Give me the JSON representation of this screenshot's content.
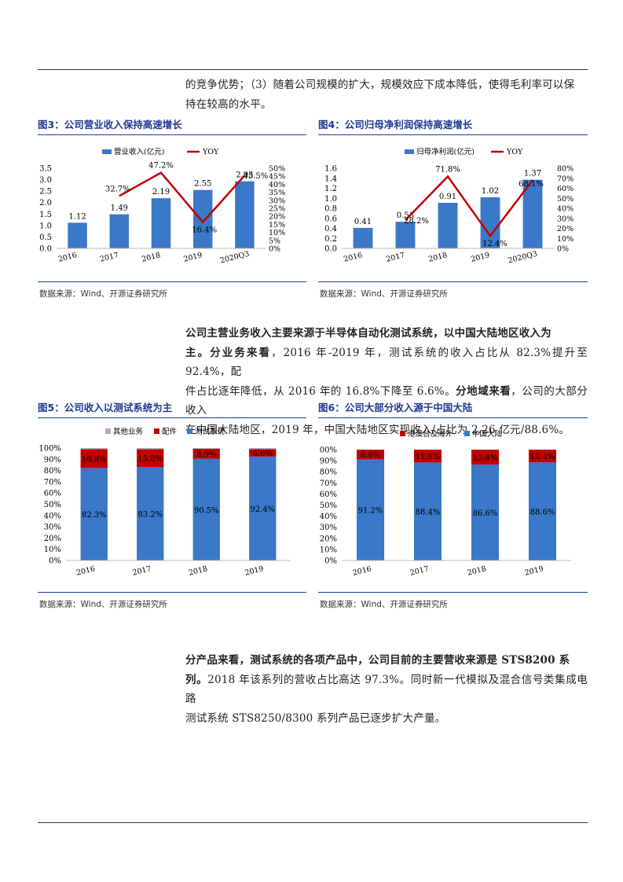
{
  "paragraphs": {
    "p1_line1": "的竞争优势；（3）随着公司规模的扩大，规模效应下成本降低，使得毛利率可以保",
    "p1_line2": "持在较高的水平。",
    "p2_bold1": "公司主营业务收入主要来源于半导体自动化测试系统，以中国大陆地区收入为",
    "p2_bold2": "主。分业务来看",
    "p2_rest2": "，2016 年-2019 年，测试系统的收入占比从 82.3%提升至 92.4%，配",
    "p2_line3": "件占比逐年降低，从 2016 年的 16.8%下降至 6.6%。",
    "p2_bold3": "分地域来看",
    "p2_rest3": "，公司的大部分收入",
    "p2_line4": "在中国大陆地区，2019 年，中国大陆地区实现收入/占比为 2.26 亿元/88.6%。",
    "p3_bold1": "分产品来看，测试系统的各项产品中，公司目前的主要营收来源是 STS8200 系",
    "p3_bold2": "列。",
    "p3_rest2": "2018 年该系列的营收占比高达 97.3%。同时新一代模拟及混合信号类集成电路",
    "p3_line3": "测试系统 STS8250/8300 系列产品已逐步扩大产量。"
  },
  "figures": {
    "fig3_title": "图3：公司营业收入保持高速增长",
    "fig4_title": "图4：公司归母净利润保持高速增长",
    "fig5_title": "图5：公司收入以测试系统为主",
    "fig6_title": "图6：公司大部分收入源于中国大陆",
    "source": "数据来源：Wind、开源证券研究所"
  },
  "colors": {
    "blue": "#3a78c9",
    "red": "#c00000",
    "gray": "#a6b0bd",
    "title_blue": "#1f3a93"
  },
  "chart_data": [
    {
      "type": "bar",
      "id": "fig3",
      "categories": [
        "2016",
        "2017",
        "2018",
        "2019",
        "2020Q3"
      ],
      "series": [
        {
          "name": "营业收入(亿元)",
          "type": "bar",
          "values": [
            1.12,
            1.49,
            2.19,
            2.55,
            2.93
          ],
          "labels": [
            "1.12",
            "1.49",
            "2.19",
            "2.55",
            "2.93"
          ]
        },
        {
          "name": "YOY",
          "type": "line",
          "axis": "right",
          "values": [
            null,
            32.7,
            47.2,
            16.4,
            45.5
          ],
          "labels": [
            "",
            "32.7%",
            "47.2%",
            "16.4%",
            "45.5%"
          ]
        }
      ],
      "ylim": [
        0,
        3.5
      ],
      "yticks": [
        "0.0",
        "0.5",
        "1.0",
        "1.5",
        "2.0",
        "2.5",
        "3.0",
        "3.5"
      ],
      "y2lim": [
        0,
        50
      ],
      "y2ticks": [
        "0%",
        "5%",
        "10%",
        "15%",
        "20%",
        "25%",
        "30%",
        "35%",
        "40%",
        "45%",
        "50%"
      ]
    },
    {
      "type": "bar",
      "id": "fig4",
      "categories": [
        "2016",
        "2017",
        "2018",
        "2019",
        "2020Q3"
      ],
      "series": [
        {
          "name": "归母净利润(亿元)",
          "type": "bar",
          "values": [
            0.41,
            0.53,
            0.91,
            1.02,
            1.37
          ],
          "labels": [
            "0.41",
            "0.53",
            "0.91",
            "1.02",
            "1.37"
          ]
        },
        {
          "name": "YOY",
          "type": "line",
          "axis": "right",
          "values": [
            null,
            28.2,
            71.8,
            12.4,
            68.1
          ],
          "labels": [
            "",
            "28.2%",
            "71.8%",
            "12.4%",
            "68.1%"
          ]
        }
      ],
      "ylim": [
        0,
        1.6
      ],
      "yticks": [
        "0.0",
        "0.2",
        "0.4",
        "0.6",
        "0.8",
        "1.0",
        "1.2",
        "1.4",
        "1.6"
      ],
      "y2lim": [
        0,
        80
      ],
      "y2ticks": [
        "0%",
        "10%",
        "20%",
        "30%",
        "40%",
        "50%",
        "60%",
        "70%",
        "80%"
      ]
    },
    {
      "type": "bar",
      "stacked": true,
      "id": "fig5",
      "categories": [
        "2016",
        "2017",
        "2018",
        "2019"
      ],
      "series": [
        {
          "name": "测试系统",
          "values": [
            82.3,
            83.2,
            90.5,
            92.4
          ],
          "labels": [
            "82.3%",
            "83.2%",
            "90.5%",
            "92.4%"
          ]
        },
        {
          "name": "配件",
          "values": [
            16.8,
            15.8,
            8.9,
            6.6
          ],
          "labels": [
            "16.8%",
            "15.8%",
            "8.9%",
            "6.6%"
          ]
        },
        {
          "name": "其他业务",
          "values": [
            0.9,
            1.0,
            0.6,
            1.0
          ],
          "labels": [
            "",
            "",
            "",
            ""
          ]
        }
      ],
      "legend_order": [
        "其他业务",
        "配件",
        "测试系统"
      ],
      "ylim": [
        0,
        100
      ],
      "yticks": [
        "0%",
        "10%",
        "20%",
        "30%",
        "40%",
        "50%",
        "60%",
        "70%",
        "80%",
        "90%",
        "100%"
      ]
    },
    {
      "type": "bar",
      "stacked": true,
      "id": "fig6",
      "categories": [
        "2016",
        "2017",
        "2018",
        "2019"
      ],
      "series": [
        {
          "name": "中国大陆",
          "values": [
            91.2,
            88.4,
            86.6,
            88.6
          ],
          "labels": [
            "91.2%",
            "88.4%",
            "86.6%",
            "88.6%"
          ]
        },
        {
          "name": "港澳台及海外",
          "values": [
            8.8,
            11.6,
            13.4,
            11.4
          ],
          "labels": [
            "8.8%",
            "11.6%",
            "13.4%",
            "11.4%"
          ]
        }
      ],
      "legend_order": [
        "港澳台及海外",
        "中国大陆"
      ],
      "ylim": [
        0,
        100
      ],
      "yticks": [
        "0%",
        "10%",
        "20%",
        "30%",
        "40%",
        "50%",
        "60%",
        "70%",
        "80%",
        "90%",
        "100%"
      ]
    }
  ]
}
